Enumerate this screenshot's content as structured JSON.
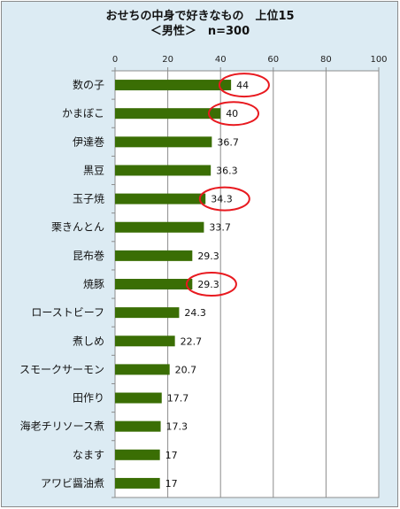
{
  "chart_data": {
    "type": "bar",
    "orientation": "horizontal",
    "title": "おせちの中身で好きなもの　上位15",
    "subtitle": "＜男性＞　n=300",
    "categories": [
      "数の子",
      "かまぼこ",
      "伊達巻",
      "黒豆",
      "玉子焼",
      "栗きんとん",
      "昆布巻",
      "焼豚",
      "ローストビーフ",
      "煮しめ",
      "スモークサーモン",
      "田作り",
      "海老チリソース煮",
      "なます",
      "アワビ醤油煮"
    ],
    "values": [
      44,
      40,
      36.7,
      36.3,
      34.3,
      33.7,
      29.3,
      29.3,
      24.3,
      22.7,
      20.7,
      17.7,
      17.3,
      17,
      17
    ],
    "value_labels": [
      "44",
      "40",
      "36.7",
      "36.3",
      "34.3",
      "33.7",
      "29.3",
      "29.3",
      "24.3",
      "22.7",
      "20.7",
      "17.7",
      "17.3",
      "17",
      "17"
    ],
    "xlim": [
      0,
      100
    ],
    "xticks": [
      "0",
      "20",
      "40",
      "60",
      "80",
      "100"
    ],
    "x_axis_position": "top",
    "grid": true,
    "highlighted_categories": [
      "数の子",
      "かまぼこ",
      "玉子焼",
      "焼豚"
    ],
    "colors": {
      "bar": "#3a6e04",
      "highlight": "#e8191f",
      "background": "#dcebf3",
      "plot_background": "#ffffff",
      "grid": "#8c8c8c"
    }
  }
}
